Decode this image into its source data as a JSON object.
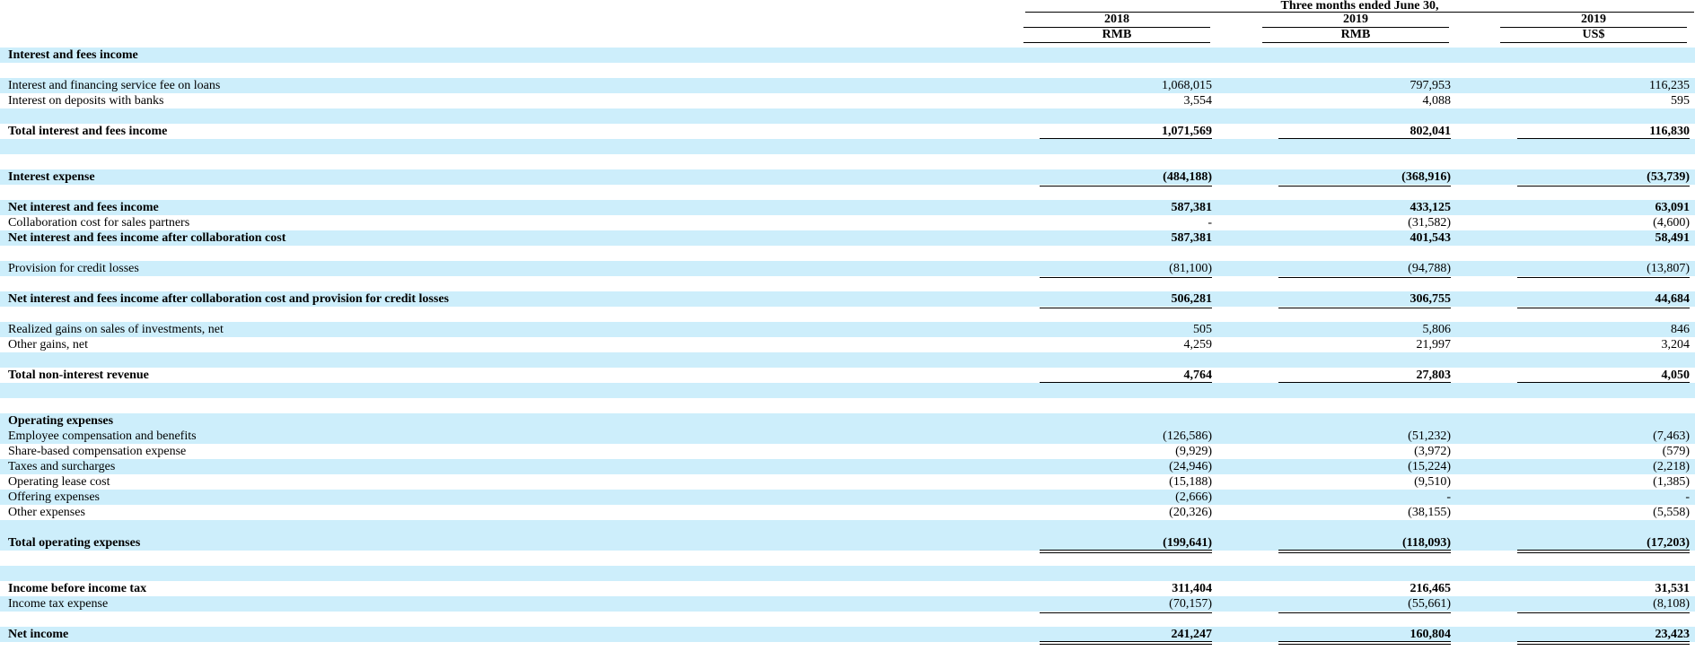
{
  "header": {
    "super_title": "Three months ended June 30,",
    "columns": [
      {
        "year": "2018",
        "currency": "RMB"
      },
      {
        "year": "2019",
        "currency": "RMB"
      },
      {
        "year": "2019",
        "currency": "US$"
      }
    ]
  },
  "rows": [
    {
      "label": "Interest and fees income",
      "values": [
        "",
        "",
        ""
      ]
    },
    {
      "label": "",
      "values": [
        "",
        "",
        ""
      ]
    },
    {
      "label": "Interest and financing service fee on loans",
      "values": [
        "1,068,015",
        "797,953",
        "116,235"
      ]
    },
    {
      "label": "Interest on deposits with banks",
      "values": [
        "3,554",
        "4,088",
        "595"
      ]
    },
    {
      "label": "",
      "values": [
        "",
        "",
        ""
      ]
    },
    {
      "label": "Total interest and fees income",
      "values": [
        "1,071,569",
        "802,041",
        "116,830"
      ]
    },
    {
      "label": "",
      "values": [
        "",
        "",
        ""
      ]
    },
    {
      "label": "",
      "values": [
        "",
        "",
        ""
      ]
    },
    {
      "label": "Interest expense",
      "values": [
        "(484,188)",
        "(368,916)",
        "(53,739)"
      ]
    },
    {
      "label": "",
      "values": [
        "",
        "",
        ""
      ]
    },
    {
      "label": "Net interest and fees income",
      "values": [
        "587,381",
        "433,125",
        "63,091"
      ]
    },
    {
      "label": "Collaboration cost for sales partners",
      "values": [
        "-",
        "(31,582)",
        "(4,600)"
      ]
    },
    {
      "label": "Net interest and fees income after collaboration cost",
      "values": [
        "587,381",
        "401,543",
        "58,491"
      ]
    },
    {
      "label": "",
      "values": [
        "",
        "",
        ""
      ]
    },
    {
      "label": "Provision for credit losses",
      "values": [
        "(81,100)",
        "(94,788)",
        "(13,807)"
      ]
    },
    {
      "label": "",
      "values": [
        "",
        "",
        ""
      ]
    },
    {
      "label": "Net interest and fees income after collaboration cost and provision for credit losses",
      "values": [
        "506,281",
        "306,755",
        "44,684"
      ]
    },
    {
      "label": "",
      "values": [
        "",
        "",
        ""
      ]
    },
    {
      "label": "Realized gains on sales of investments, net",
      "values": [
        "505",
        "5,806",
        "846"
      ]
    },
    {
      "label": "Other gains, net",
      "values": [
        "4,259",
        "21,997",
        "3,204"
      ]
    },
    {
      "label": "",
      "values": [
        "",
        "",
        ""
      ]
    },
    {
      "label": "Total non-interest revenue",
      "values": [
        "4,764",
        "27,803",
        "4,050"
      ]
    },
    {
      "label": "",
      "values": [
        "",
        "",
        ""
      ]
    },
    {
      "label": "",
      "values": [
        "",
        "",
        ""
      ]
    },
    {
      "label": "Operating expenses",
      "values": [
        "",
        "",
        ""
      ]
    },
    {
      "label": "Employee compensation and benefits",
      "values": [
        "(126,586)",
        "(51,232)",
        "(7,463)"
      ]
    },
    {
      "label": "Share-based compensation expense",
      "values": [
        "(9,929)",
        "(3,972)",
        "(579)"
      ]
    },
    {
      "label": "Taxes and surcharges",
      "values": [
        "(24,946)",
        "(15,224)",
        "(2,218)"
      ]
    },
    {
      "label": "Operating lease cost",
      "values": [
        "(15,188)",
        "(9,510)",
        "(1,385)"
      ]
    },
    {
      "label": "Offering expenses",
      "values": [
        "(2,666)",
        "-",
        "-"
      ]
    },
    {
      "label": "Other expenses",
      "values": [
        "(20,326)",
        "(38,155)",
        "(5,558)"
      ]
    },
    {
      "label": "",
      "values": [
        "",
        "",
        ""
      ]
    },
    {
      "label": "Total operating expenses",
      "values": [
        "(199,641)",
        "(118,093)",
        "(17,203)"
      ]
    },
    {
      "label": "",
      "values": [
        "",
        "",
        ""
      ]
    },
    {
      "label": "",
      "values": [
        "",
        "",
        ""
      ]
    },
    {
      "label": "Income before income tax",
      "values": [
        "311,404",
        "216,465",
        "31,531"
      ]
    },
    {
      "label": "Income tax expense",
      "values": [
        "(70,157)",
        "(55,661)",
        "(8,108)"
      ]
    },
    {
      "label": "",
      "values": [
        "",
        "",
        ""
      ]
    },
    {
      "label": "Net income",
      "values": [
        "241,247",
        "160,804",
        "23,423"
      ]
    }
  ]
}
